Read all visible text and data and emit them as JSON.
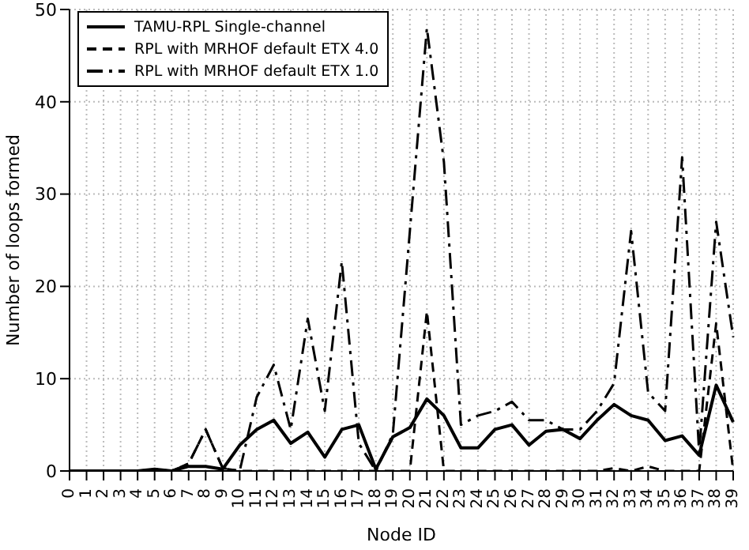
{
  "chart_data": {
    "type": "line",
    "xlabel": "Node ID",
    "ylabel": "Number of loops formed",
    "categories": [
      "0",
      "1",
      "2",
      "3",
      "4",
      "5",
      "6",
      "7",
      "8",
      "9",
      "10",
      "11",
      "12",
      "13",
      "14",
      "15",
      "16",
      "17",
      "18",
      "19",
      "20",
      "21",
      "22",
      "23",
      "24",
      "25",
      "26",
      "27",
      "28",
      "29",
      "30",
      "31",
      "32",
      "33",
      "34",
      "35",
      "36",
      "37",
      "38",
      "39"
    ],
    "series": [
      {
        "name": "TAMU-RPL Single-channel",
        "color": "#000000",
        "line_style": "solid",
        "values": [
          0,
          0,
          0,
          0,
          0,
          0.2,
          0,
          0.5,
          0.5,
          0.2,
          2.8,
          4.5,
          5.5,
          3,
          4.2,
          1.5,
          4.5,
          5,
          0.2,
          3.7,
          4.7,
          7.8,
          6,
          2.5,
          2.5,
          4.5,
          5,
          2.8,
          4.3,
          4.5,
          3.5,
          5.5,
          7.2,
          6,
          5.5,
          3.3,
          3.8,
          1.7,
          9.3,
          5.3
        ]
      },
      {
        "name": "RPL with MRHOF default ETX 4.0",
        "color": "#000000",
        "line_style": "dashed",
        "values": [
          0,
          0,
          0,
          0,
          0,
          0,
          0,
          0.8,
          4.5,
          0.3,
          0,
          0,
          0,
          0,
          0,
          0,
          0,
          0,
          0,
          0,
          0,
          17.3,
          0,
          0,
          0,
          0,
          0,
          0,
          0,
          0,
          0,
          0,
          0.3,
          0,
          0.5,
          0,
          0,
          0,
          16,
          0
        ]
      },
      {
        "name": "RPL with MRHOF default ETX 1.0",
        "color": "#000000",
        "line_style": "dashdot",
        "values": [
          0,
          0,
          0,
          0,
          0,
          0.2,
          0,
          0.8,
          4.5,
          0.3,
          0,
          8,
          11.5,
          4.5,
          16.5,
          6.5,
          22.7,
          3,
          0,
          4,
          26,
          48,
          33.5,
          5,
          6,
          6.5,
          7.5,
          5.5,
          5.5,
          4.5,
          4.5,
          6.5,
          9.5,
          26,
          8.5,
          6.5,
          34,
          2,
          27,
          14.5
        ]
      }
    ],
    "ylim": [
      0,
      50
    ],
    "yticks": [
      0,
      10,
      20,
      30,
      40,
      50
    ],
    "grid": true,
    "legend": "top left"
  }
}
